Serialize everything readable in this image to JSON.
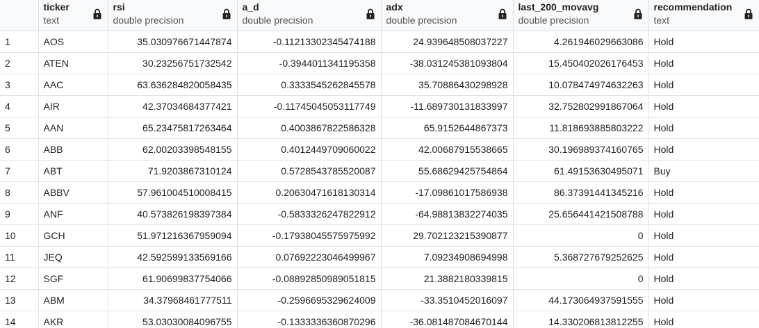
{
  "columns": [
    {
      "name": "ticker",
      "type": "text"
    },
    {
      "name": "rsi",
      "type": "double precision"
    },
    {
      "name": "a_d",
      "type": "double precision"
    },
    {
      "name": "adx",
      "type": "double precision"
    },
    {
      "name": "last_200_movavg",
      "type": "double precision"
    },
    {
      "name": "recommendation",
      "type": "text"
    }
  ],
  "rows": [
    {
      "n": "1",
      "ticker": "AOS",
      "rsi": "35.030976671447874",
      "a_d": "-0.11213302345474188",
      "adx": "24.939648508037227",
      "movavg": "4.261946029663086",
      "rec": "Hold"
    },
    {
      "n": "2",
      "ticker": "ATEN",
      "rsi": "30.23256751732542",
      "a_d": "-0.3944011341195358",
      "adx": "-38.031245381093804",
      "movavg": "15.450402026176453",
      "rec": "Hold"
    },
    {
      "n": "3",
      "ticker": "AAC",
      "rsi": "63.636284820058435",
      "a_d": "0.3333545262845578",
      "adx": "35.70886430298928",
      "movavg": "10.078474974632263",
      "rec": "Hold"
    },
    {
      "n": "4",
      "ticker": "AIR",
      "rsi": "42.37034684377421",
      "a_d": "-0.11745045053117749",
      "adx": "-11.689730131833997",
      "movavg": "32.752802991867064",
      "rec": "Hold"
    },
    {
      "n": "5",
      "ticker": "AAN",
      "rsi": "65.23475817263464",
      "a_d": "0.4003867822586328",
      "adx": "65.9152644867373",
      "movavg": "11.818693885803222",
      "rec": "Hold"
    },
    {
      "n": "6",
      "ticker": "ABB",
      "rsi": "62.00203398548155",
      "a_d": "0.4012449709060022",
      "adx": "42.00687915538665",
      "movavg": "30.196989374160765",
      "rec": "Hold"
    },
    {
      "n": "7",
      "ticker": "ABT",
      "rsi": "71.9203867310124",
      "a_d": "0.5728543785520087",
      "adx": "55.68629425754864",
      "movavg": "61.49153630495071",
      "rec": "Buy"
    },
    {
      "n": "8",
      "ticker": "ABBV",
      "rsi": "57.961004510008415",
      "a_d": "0.20630471618130314",
      "adx": "-17.09861017586938",
      "movavg": "86.37391441345216",
      "rec": "Hold"
    },
    {
      "n": "9",
      "ticker": "ANF",
      "rsi": "40.573826198397384",
      "a_d": "-0.5833326247822912",
      "adx": "-64.98813832274035",
      "movavg": "25.656441421508788",
      "rec": "Hold"
    },
    {
      "n": "10",
      "ticker": "GCH",
      "rsi": "51.971216367959094",
      "a_d": "-0.17938045575975992",
      "adx": "29.702123215390877",
      "movavg": "0",
      "rec": "Hold"
    },
    {
      "n": "11",
      "ticker": "JEQ",
      "rsi": "42.592599133569166",
      "a_d": "0.07692223046499967",
      "adx": "7.09234908694998",
      "movavg": "5.368727679252625",
      "rec": "Hold"
    },
    {
      "n": "12",
      "ticker": "SGF",
      "rsi": "61.90699837754066",
      "a_d": "-0.08892850989051815",
      "adx": "21.3882180339815",
      "movavg": "0",
      "rec": "Hold"
    },
    {
      "n": "13",
      "ticker": "ABM",
      "rsi": "34.37968461777511",
      "a_d": "-0.2596695329624009",
      "adx": "-33.3510452016097",
      "movavg": "44.173064937591555",
      "rec": "Hold"
    },
    {
      "n": "14",
      "ticker": "AKR",
      "rsi": "53.03030084096755",
      "a_d": "-0.1333336360870296",
      "adx": "-36.081487084670144",
      "movavg": "14.330206813812255",
      "rec": "Hold"
    }
  ]
}
